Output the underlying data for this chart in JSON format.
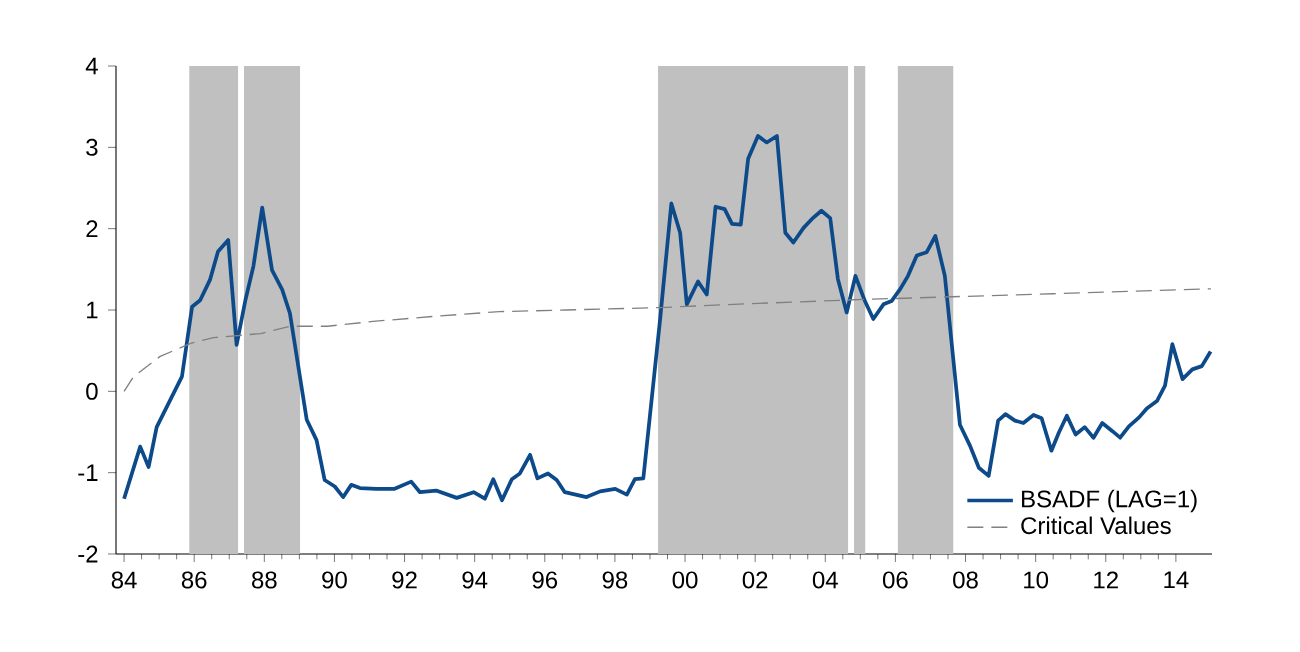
{
  "chart_data": {
    "type": "line",
    "x": [
      1984.0,
      1984.46,
      1984.7,
      1984.93,
      1985.65,
      1985.94,
      1986.17,
      1986.45,
      1986.68,
      1986.97,
      1987.21,
      1987.46,
      1987.69,
      1987.94,
      1988.22,
      1988.51,
      1988.73,
      1989.21,
      1989.49,
      1989.72,
      1990.01,
      1990.25,
      1990.48,
      1990.73,
      1991.2,
      1991.7,
      1992.19,
      1992.44,
      1992.9,
      1993.49,
      1993.97,
      1994.29,
      1994.53,
      1994.78,
      1995.06,
      1995.29,
      1995.58,
      1995.79,
      1996.09,
      1996.34,
      1996.57,
      1997.19,
      1997.58,
      1998.01,
      1998.34,
      1998.57,
      1998.81,
      1999.29,
      1999.61,
      1999.86,
      2000.05,
      2000.37,
      2000.62,
      2000.87,
      2001.13,
      2001.34,
      2001.59,
      2001.8,
      2002.08,
      2002.33,
      2002.62,
      2002.86,
      2003.09,
      2003.38,
      2003.62,
      2003.89,
      2004.14,
      2004.36,
      2004.61,
      2004.86,
      2005.13,
      2005.37,
      2005.66,
      2005.89,
      2006.14,
      2006.36,
      2006.61,
      2006.89,
      2007.14,
      2007.41,
      2007.84,
      2008.13,
      2008.38,
      2008.66,
      2008.93,
      2009.14,
      2009.41,
      2009.65,
      2009.94,
      2010.17,
      2010.45,
      2010.66,
      2010.89,
      2011.14,
      2011.4,
      2011.65,
      2011.9,
      2012.19,
      2012.41,
      2012.66,
      2012.95,
      2013.17,
      2013.46,
      2013.69,
      2013.9,
      2014.19,
      2014.47,
      2014.74,
      2014.99
    ],
    "series": [
      {
        "name": "BSADF (LAG=1)",
        "color": "#0d4a8a",
        "line_style": "solid",
        "values": [
          -1.32,
          -0.68,
          -0.93,
          -0.44,
          0.18,
          1.04,
          1.12,
          1.37,
          1.72,
          1.86,
          0.57,
          1.12,
          1.54,
          2.26,
          1.49,
          1.25,
          0.96,
          -0.35,
          -0.6,
          -1.09,
          -1.17,
          -1.3,
          -1.15,
          -1.19,
          -1.2,
          -1.2,
          -1.11,
          -1.24,
          -1.22,
          -1.31,
          -1.24,
          -1.32,
          -1.08,
          -1.34,
          -1.08,
          -1.01,
          -0.78,
          -1.07,
          -1.01,
          -1.09,
          -1.24,
          -1.3,
          -1.23,
          -1.2,
          -1.27,
          -1.08,
          -1.07,
          0.89,
          2.31,
          1.95,
          1.07,
          1.35,
          1.19,
          2.27,
          2.24,
          2.06,
          2.05,
          2.86,
          3.14,
          3.06,
          3.14,
          1.95,
          1.83,
          2.01,
          2.12,
          2.22,
          2.13,
          1.38,
          0.97,
          1.42,
          1.11,
          0.89,
          1.07,
          1.11,
          1.26,
          1.42,
          1.67,
          1.71,
          1.91,
          1.42,
          -0.41,
          -0.67,
          -0.94,
          -1.04,
          -0.36,
          -0.28,
          -0.36,
          -0.39,
          -0.29,
          -0.33,
          -0.73,
          -0.51,
          -0.3,
          -0.53,
          -0.44,
          -0.57,
          -0.39,
          -0.49,
          -0.57,
          -0.43,
          -0.32,
          -0.21,
          -0.12,
          0.07,
          0.58,
          0.15,
          0.27,
          0.31,
          0.49
        ]
      },
      {
        "name": "Critical Values",
        "color": "#808080",
        "line_style": "dashed",
        "x": [
          1984.0,
          1984.27,
          1985.03,
          1985.9,
          1986.55,
          1987.9,
          1988.73,
          1989.8,
          1991.1,
          1992.8,
          1994.7,
          1996.6,
          1999.3,
          2001.4,
          2005.1,
          2010.5,
          2015.0
        ],
        "values": [
          0.0,
          0.18,
          0.43,
          0.59,
          0.66,
          0.71,
          0.8,
          0.8,
          0.86,
          0.92,
          0.98,
          1.0,
          1.03,
          1.07,
          1.13,
          1.2,
          1.26
        ]
      }
    ],
    "bands": [
      {
        "axis": "x",
        "from": 1985.86,
        "to": 1987.25,
        "color": "#c0c0c0"
      },
      {
        "axis": "x",
        "from": 1987.42,
        "to": 1989.02,
        "color": "#c0c0c0"
      },
      {
        "axis": "x",
        "from": 1999.23,
        "to": 2004.65,
        "color": "#c0c0c0"
      },
      {
        "axis": "x",
        "from": 2004.82,
        "to": 2005.14,
        "color": "#c0c0c0"
      },
      {
        "axis": "x",
        "from": 2006.07,
        "to": 2007.65,
        "color": "#c0c0c0"
      }
    ],
    "xlim": [
      1983.77,
      2015.03
    ],
    "ylim": [
      -2,
      4
    ],
    "yticks": [
      -2,
      -1,
      0,
      1,
      2,
      3,
      4
    ],
    "xticks": [
      {
        "value": 1984,
        "label": "84"
      },
      {
        "value": 1986,
        "label": "86"
      },
      {
        "value": 1988,
        "label": "88"
      },
      {
        "value": 1990,
        "label": "90"
      },
      {
        "value": 1992,
        "label": "92"
      },
      {
        "value": 1994,
        "label": "94"
      },
      {
        "value": 1996,
        "label": "96"
      },
      {
        "value": 1998,
        "label": "98"
      },
      {
        "value": 2000,
        "label": "00"
      },
      {
        "value": 2002,
        "label": "02"
      },
      {
        "value": 2004,
        "label": "04"
      },
      {
        "value": 2006,
        "label": "06"
      },
      {
        "value": 2008,
        "label": "08"
      },
      {
        "value": 2010,
        "label": "10"
      },
      {
        "value": 2012,
        "label": "12"
      },
      {
        "value": 2014,
        "label": "14"
      }
    ],
    "grid": false,
    "legend": "bottom right",
    "marker": "none"
  }
}
